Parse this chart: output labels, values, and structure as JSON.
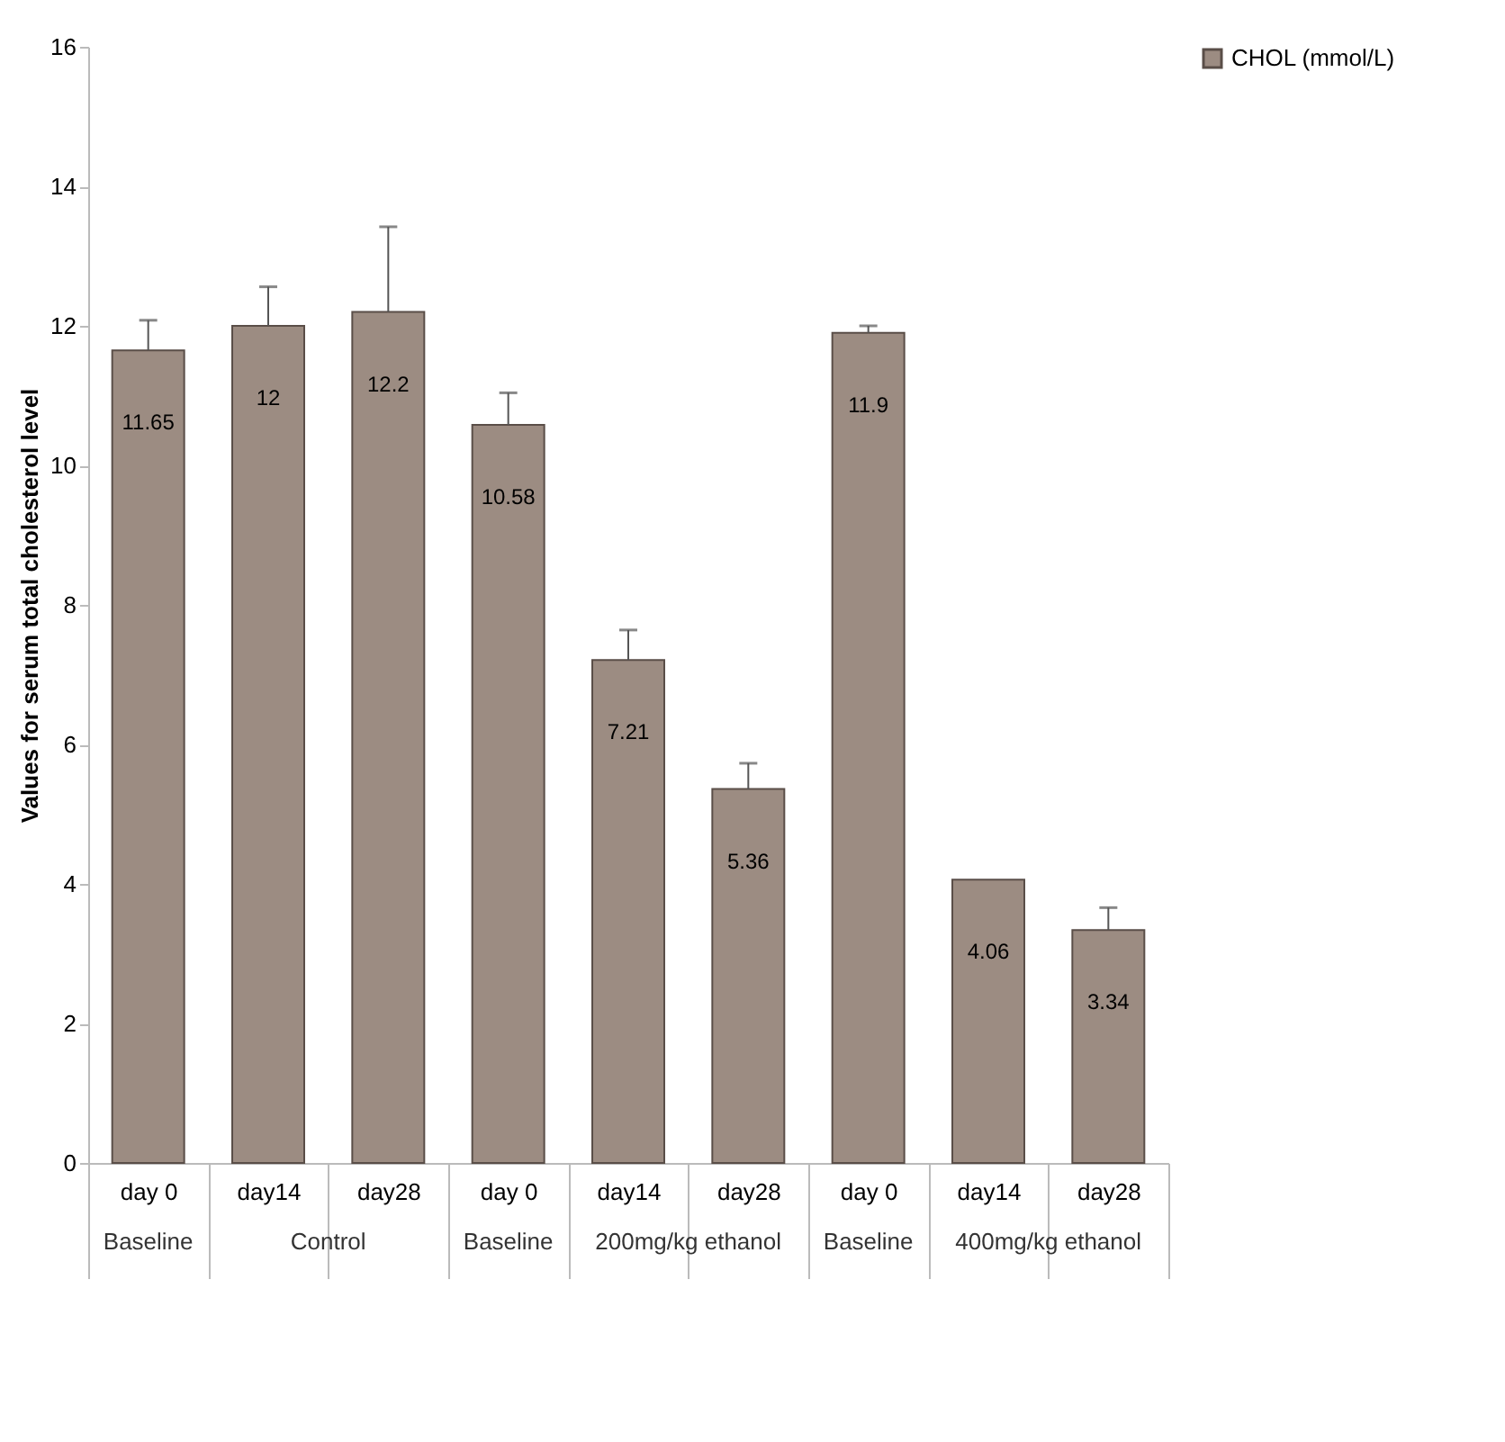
{
  "chart_data": {
    "type": "bar",
    "categories": [
      "day 0",
      "day14",
      "day28",
      "day 0",
      "day14",
      "day28",
      "day 0",
      "day14",
      "day28"
    ],
    "series": [
      {
        "name": "CHOL (mmol/L)",
        "color": "#9c8c82",
        "values": [
          11.65,
          12,
          12.2,
          10.58,
          7.21,
          5.36,
          11.9,
          4.06,
          3.34
        ],
        "errors": [
          [
            11.65,
            12.08
          ],
          [
            12,
            12.56
          ],
          [
            12.2,
            13.42
          ],
          [
            10.58,
            11.04
          ],
          [
            7.21,
            7.64
          ],
          [
            5.36,
            5.73
          ],
          [
            11.9,
            12.0
          ],
          null,
          [
            3.34,
            3.66
          ]
        ]
      }
    ],
    "ylabel": "Values for serum total cholesterol level",
    "ylim": [
      0,
      16
    ],
    "yticks": [
      0,
      2,
      4,
      6,
      8,
      10,
      12,
      14,
      16
    ],
    "annotations": [
      "Baseline",
      "Control",
      "Baseline",
      "200mg/kg ethanol",
      "Baseline",
      "400mg/kg ethanol"
    ],
    "data_labels": true,
    "grid": false,
    "legend": "right"
  }
}
